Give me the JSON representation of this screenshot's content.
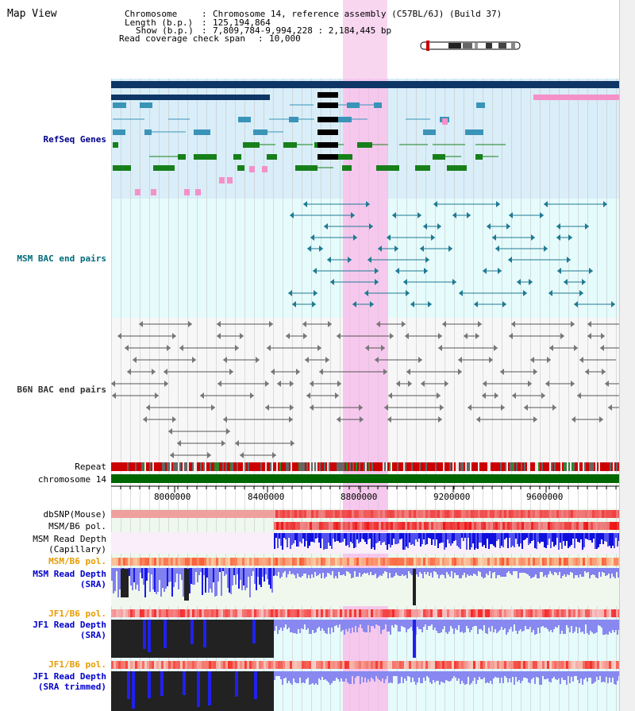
{
  "title": "Map View",
  "header": {
    "chromosome_key": "Chromosome",
    "chromosome_val": "Chromosome 14, reference assembly (C57BL/6J) (Build 37)",
    "length_key": "Length (b.p.)",
    "length_val": "125,194,864",
    "show_key": "Show (b.p.)",
    "show_val": "7,809,784-9,994,228 : 2,184,445 bp",
    "coverage_key": "Read coverage check span",
    "coverage_val": "10,000"
  },
  "tracks": {
    "refseq": "RefSeq Genes",
    "msm_bac": "MSM BAC end pairs",
    "b6n_bac": "B6N BAC end pairs",
    "repeat": "Repeat",
    "chrom": "chromosome 14",
    "dbsnp": "dbSNP(Mouse)",
    "msm_b6_pol": "MSM/B6 pol.",
    "msm_depth_cap": "MSM Read Depth\n(Capillary)",
    "msm_b6_pol2": "MSM/B6 pol.",
    "msm_depth_sra": "MSM Read Depth\n(SRA)",
    "jf1_b6_pol": "JF1/B6 pol.",
    "jf1_depth_sra": "JF1 Read Depth\n(SRA)",
    "jf1_b6_pol2": "JF1/B6 pol.",
    "jf1_depth_trim": "JF1 Read Depth\n(SRA trimmed)"
  },
  "axis_ticks": [
    "8000000",
    "8400000",
    "8800000",
    "9200000",
    "9600000"
  ],
  "colors": {
    "refseq_bg": "#d9eef8",
    "msm_bg": "#e6fbfb",
    "b6n_bg": "#f7f7f7",
    "highlight": "#f8d6f0",
    "chrom_green": "#006600",
    "snp_pink": "#f4b0b0",
    "pol_red": "#ee3333",
    "depth_blue": "#2020ee",
    "depth_light": "#9090f0"
  }
}
